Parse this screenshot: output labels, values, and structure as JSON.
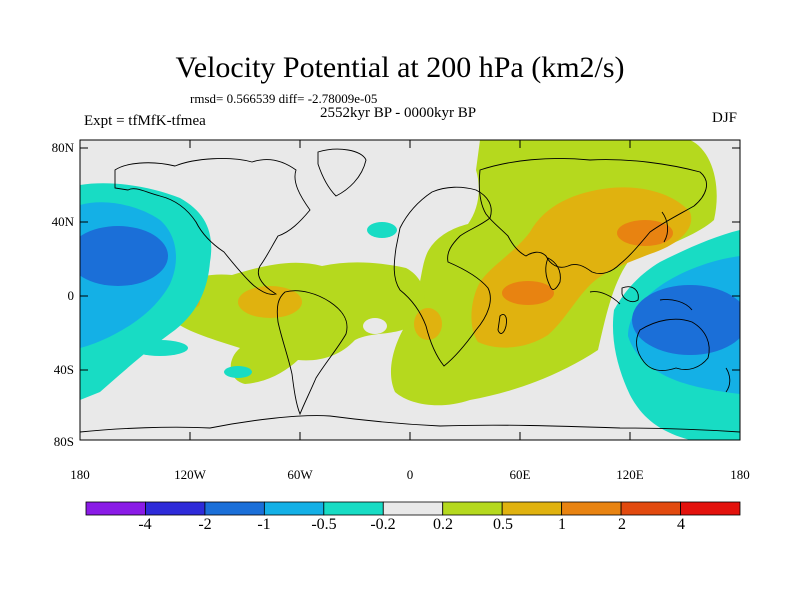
{
  "title": "Velocity Potential at 200 hPa (km2/s)",
  "stats": "rmsd= 0.566539 diff= -2.78009e-05",
  "expt_label": "Expt = tfMfK-tfmea",
  "period": "2552kyr BP - 0000kyr BP",
  "season": "DJF",
  "lat_labels": [
    "80N",
    "40N",
    "0",
    "40S",
    "80S"
  ],
  "lon_labels": [
    "180",
    "120W",
    "60W",
    "0",
    "60E",
    "120E",
    "180"
  ],
  "colorbar": {
    "labels": [
      "-4",
      "-2",
      "-1",
      "-0.5",
      "-0.2",
      "0.2",
      "0.5",
      "1",
      "2",
      "4"
    ],
    "colors": [
      "#8a1be6",
      "#2e2bd9",
      "#1b6fd8",
      "#14b0e6",
      "#18dcc4",
      "#e9e9e9",
      "#b5d91e",
      "#e0b20f",
      "#e88311",
      "#e24a0f",
      "#e3120d"
    ]
  }
}
